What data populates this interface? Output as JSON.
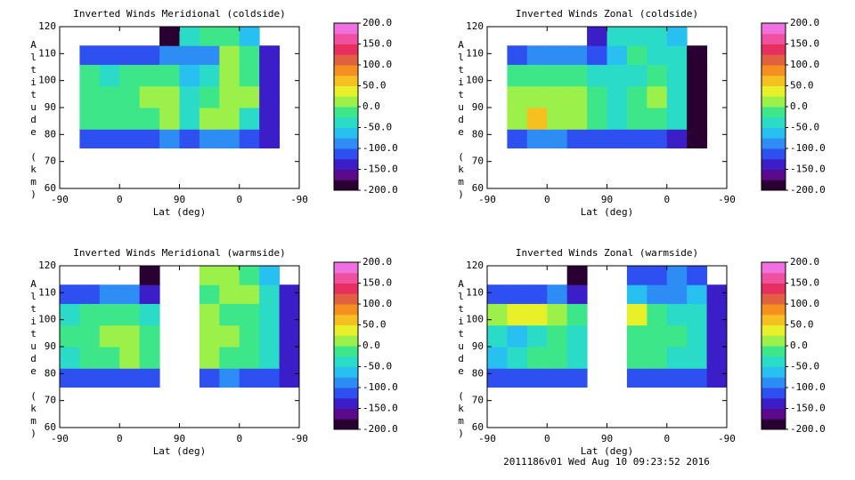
{
  "chart_data": [
    {
      "type": "contour",
      "title": "Inverted Winds Meridional (coldside)",
      "xlabel": "Lat (deg)",
      "ylabel": "Altitude (km)",
      "xlim": [
        0,
        360
      ],
      "xticks": [
        {
          "value": 0,
          "label": "-90"
        },
        {
          "value": 90,
          "label": "0"
        },
        {
          "value": 180,
          "label": "90"
        },
        {
          "value": 270,
          "label": "0"
        },
        {
          "value": 360,
          "label": "-90"
        }
      ],
      "ylim": [
        60,
        120
      ],
      "yticks": [
        60,
        70,
        80,
        90,
        100,
        110,
        120
      ],
      "xedges": [
        0,
        30,
        60,
        90,
        120,
        150,
        180,
        210,
        240,
        270,
        300,
        330,
        360
      ],
      "yedges": [
        75,
        82,
        90,
        98,
        106,
        113,
        120
      ],
      "z": [
        [
          null,
          -120,
          -110,
          -110,
          -110,
          -100,
          -120,
          -100,
          -80,
          -110,
          -150,
          null
        ],
        [
          null,
          -20,
          -10,
          -20,
          -10,
          10,
          -30,
          10,
          20,
          -30,
          -150,
          null
        ],
        [
          null,
          -10,
          -20,
          -10,
          0,
          20,
          -40,
          -10,
          10,
          10,
          -150,
          null
        ],
        [
          null,
          -20,
          -30,
          -10,
          -10,
          -10,
          -60,
          -40,
          20,
          -20,
          -150,
          null
        ],
        [
          null,
          -120,
          -110,
          -110,
          -120,
          -100,
          -80,
          -90,
          0,
          -20,
          -150,
          null
        ],
        [
          null,
          null,
          null,
          null,
          null,
          -180,
          -40,
          -20,
          -10,
          -60,
          null,
          null
        ]
      ],
      "clim": [
        -200,
        200
      ],
      "cticks": [
        {
          "value": 200,
          "label": "200.0"
        },
        {
          "value": 150,
          "label": "150.0"
        },
        {
          "value": 100,
          "label": "100.0"
        },
        {
          "value": 50,
          "label": "50.0"
        },
        {
          "value": 0,
          "label": "0.0"
        },
        {
          "value": -50,
          "label": "-50.0"
        },
        {
          "value": -100,
          "label": "-100.0"
        },
        {
          "value": -150,
          "label": "-150.0"
        },
        {
          "value": -200,
          "label": "-200.0"
        }
      ],
      "colorscale": [
        "#2a0033",
        "#5a0a8a",
        "#3c1ec8",
        "#2e50f0",
        "#2e8cf5",
        "#27c0f0",
        "#2adcc8",
        "#3ee68a",
        "#9cf04a",
        "#e8f02a",
        "#f5c020",
        "#f59020",
        "#e06040",
        "#e83060",
        "#f050a0",
        "#f070e0"
      ]
    },
    {
      "type": "contour",
      "title": "Inverted Winds Zonal (coldside)",
      "xlabel": "Lat (deg)",
      "ylabel": "Altitude (km)",
      "xlim": [
        0,
        360
      ],
      "xticks": [
        {
          "value": 0,
          "label": "-90"
        },
        {
          "value": 90,
          "label": "0"
        },
        {
          "value": 180,
          "label": "90"
        },
        {
          "value": 270,
          "label": "0"
        },
        {
          "value": 360,
          "label": "-90"
        }
      ],
      "ylim": [
        60,
        120
      ],
      "yticks": [
        60,
        70,
        80,
        90,
        100,
        110,
        120
      ],
      "xedges": [
        0,
        30,
        60,
        90,
        120,
        150,
        180,
        210,
        240,
        270,
        300,
        330,
        360
      ],
      "yedges": [
        75,
        82,
        90,
        98,
        106,
        113,
        120
      ],
      "z": [
        [
          null,
          -120,
          -100,
          -100,
          -110,
          -120,
          -120,
          -120,
          -110,
          -150,
          -200,
          null
        ],
        [
          null,
          20,
          50,
          20,
          0,
          -20,
          -40,
          -10,
          -10,
          -40,
          -200,
          null
        ],
        [
          null,
          10,
          20,
          10,
          10,
          -10,
          -40,
          -10,
          0,
          -30,
          -200,
          null
        ],
        [
          null,
          -10,
          -20,
          -20,
          -20,
          -30,
          -50,
          -30,
          -10,
          -30,
          -200,
          null
        ],
        [
          null,
          -120,
          -100,
          -100,
          -100,
          -110,
          -60,
          -20,
          -30,
          -40,
          -200,
          null
        ],
        [
          null,
          null,
          null,
          null,
          null,
          -150,
          -40,
          -30,
          -30,
          -60,
          null,
          null
        ]
      ],
      "clim": [
        -200,
        200
      ],
      "cticks": [
        {
          "value": 200,
          "label": "200.0"
        },
        {
          "value": 150,
          "label": "150.0"
        },
        {
          "value": 100,
          "label": "100.0"
        },
        {
          "value": 50,
          "label": "50.0"
        },
        {
          "value": 0,
          "label": "0.0"
        },
        {
          "value": -50,
          "label": "-50.0"
        },
        {
          "value": -100,
          "label": "-100.0"
        },
        {
          "value": -150,
          "label": "-150.0"
        },
        {
          "value": -200,
          "label": "-200.0"
        }
      ],
      "colorscale": [
        "#2a0033",
        "#5a0a8a",
        "#3c1ec8",
        "#2e50f0",
        "#2e8cf5",
        "#27c0f0",
        "#2adcc8",
        "#3ee68a",
        "#9cf04a",
        "#e8f02a",
        "#f5c020",
        "#f59020",
        "#e06040",
        "#e83060",
        "#f050a0",
        "#f070e0"
      ]
    },
    {
      "type": "contour",
      "title": "Inverted Winds Meridional (warmside)",
      "xlabel": "Lat (deg)",
      "ylabel": "Altitude (km)",
      "xlim": [
        0,
        360
      ],
      "xticks": [
        {
          "value": 0,
          "label": "-90"
        },
        {
          "value": 90,
          "label": "0"
        },
        {
          "value": 180,
          "label": "90"
        },
        {
          "value": 270,
          "label": "0"
        },
        {
          "value": 360,
          "label": "-90"
        }
      ],
      "ylim": [
        60,
        120
      ],
      "yticks": [
        60,
        70,
        80,
        90,
        100,
        110,
        120
      ],
      "xedges": [
        0,
        30,
        60,
        90,
        120,
        150,
        180,
        210,
        240,
        270,
        300,
        330,
        360
      ],
      "yedges": [
        75,
        82,
        90,
        98,
        106,
        113,
        120
      ],
      "z": [
        [
          -120,
          -110,
          -110,
          -110,
          -120,
          null,
          null,
          -110,
          -100,
          -110,
          -120,
          -150
        ],
        [
          -40,
          -10,
          -10,
          0,
          -20,
          null,
          null,
          10,
          -10,
          -10,
          -40,
          -140
        ],
        [
          -20,
          -10,
          0,
          20,
          -10,
          null,
          null,
          20,
          10,
          -10,
          -30,
          -140
        ],
        [
          -30,
          -20,
          -10,
          -10,
          -30,
          null,
          null,
          0,
          -20,
          -20,
          -40,
          -150
        ],
        [
          -120,
          -110,
          -100,
          -100,
          -130,
          null,
          null,
          -10,
          20,
          0,
          -30,
          -150
        ],
        [
          null,
          null,
          null,
          null,
          -180,
          null,
          null,
          10,
          20,
          -10,
          -60,
          null
        ]
      ],
      "clim": [
        -200,
        200
      ],
      "cticks": [
        {
          "value": 200,
          "label": "200.0"
        },
        {
          "value": 150,
          "label": "150.0"
        },
        {
          "value": 100,
          "label": "100.0"
        },
        {
          "value": 50,
          "label": "50.0"
        },
        {
          "value": 0,
          "label": "0.0"
        },
        {
          "value": -50,
          "label": "-50.0"
        },
        {
          "value": -100,
          "label": "-100.0"
        },
        {
          "value": -150,
          "label": "-150.0"
        },
        {
          "value": -200,
          "label": "-200.0"
        }
      ],
      "colorscale": [
        "#2a0033",
        "#5a0a8a",
        "#3c1ec8",
        "#2e50f0",
        "#2e8cf5",
        "#27c0f0",
        "#2adcc8",
        "#3ee68a",
        "#9cf04a",
        "#e8f02a",
        "#f5c020",
        "#f59020",
        "#e06040",
        "#e83060",
        "#f050a0",
        "#f070e0"
      ]
    },
    {
      "type": "contour",
      "title": "Inverted Winds Zonal (warmside)",
      "xlabel": "Lat (deg)",
      "ylabel": "Altitude (km)",
      "xlim": [
        0,
        360
      ],
      "xticks": [
        {
          "value": 0,
          "label": "-90"
        },
        {
          "value": 90,
          "label": "0"
        },
        {
          "value": 180,
          "label": "90"
        },
        {
          "value": 270,
          "label": "0"
        },
        {
          "value": 360,
          "label": "-90"
        }
      ],
      "ylim": [
        60,
        120
      ],
      "yticks": [
        60,
        70,
        80,
        90,
        100,
        110,
        120
      ],
      "xedges": [
        0,
        30,
        60,
        90,
        120,
        150,
        180,
        210,
        240,
        270,
        300,
        330,
        360
      ],
      "yedges": [
        75,
        82,
        90,
        98,
        106,
        113,
        120
      ],
      "z": [
        [
          -120,
          -110,
          -110,
          -110,
          -120,
          null,
          null,
          -120,
          -110,
          -110,
          -120,
          -150
        ],
        [
          -60,
          -30,
          -20,
          -20,
          -40,
          null,
          null,
          -20,
          -10,
          -30,
          -50,
          -140
        ],
        [
          -40,
          -60,
          -50,
          -20,
          -30,
          null,
          null,
          -10,
          -20,
          -20,
          -40,
          -140
        ],
        [
          0,
          30,
          40,
          20,
          -20,
          null,
          null,
          40,
          -10,
          -30,
          -40,
          -150
        ],
        [
          -120,
          -110,
          -110,
          -100,
          -130,
          null,
          null,
          -60,
          -90,
          -80,
          -60,
          -150
        ],
        [
          null,
          null,
          null,
          null,
          -180,
          null,
          null,
          -110,
          -120,
          -100,
          -110,
          null
        ]
      ],
      "clim": [
        -200,
        200
      ],
      "cticks": [
        {
          "value": 200,
          "label": "200.0"
        },
        {
          "value": 150,
          "label": "150.0"
        },
        {
          "value": 100,
          "label": "100.0"
        },
        {
          "value": 50,
          "label": "50.0"
        },
        {
          "value": 0,
          "label": "0.0"
        },
        {
          "value": -50,
          "label": "-50.0"
        },
        {
          "value": -100,
          "label": "-100.0"
        },
        {
          "value": -150,
          "label": "-150.0"
        },
        {
          "value": -200,
          "label": "-200.0"
        }
      ],
      "colorscale": [
        "#2a0033",
        "#5a0a8a",
        "#3c1ec8",
        "#2e50f0",
        "#2e8cf5",
        "#27c0f0",
        "#2adcc8",
        "#3ee68a",
        "#9cf04a",
        "#e8f02a",
        "#f5c020",
        "#f59020",
        "#e06040",
        "#e83060",
        "#f050a0",
        "#f070e0"
      ]
    }
  ],
  "footer": "2011186v01 Wed Aug 10 09:23:52 2016"
}
